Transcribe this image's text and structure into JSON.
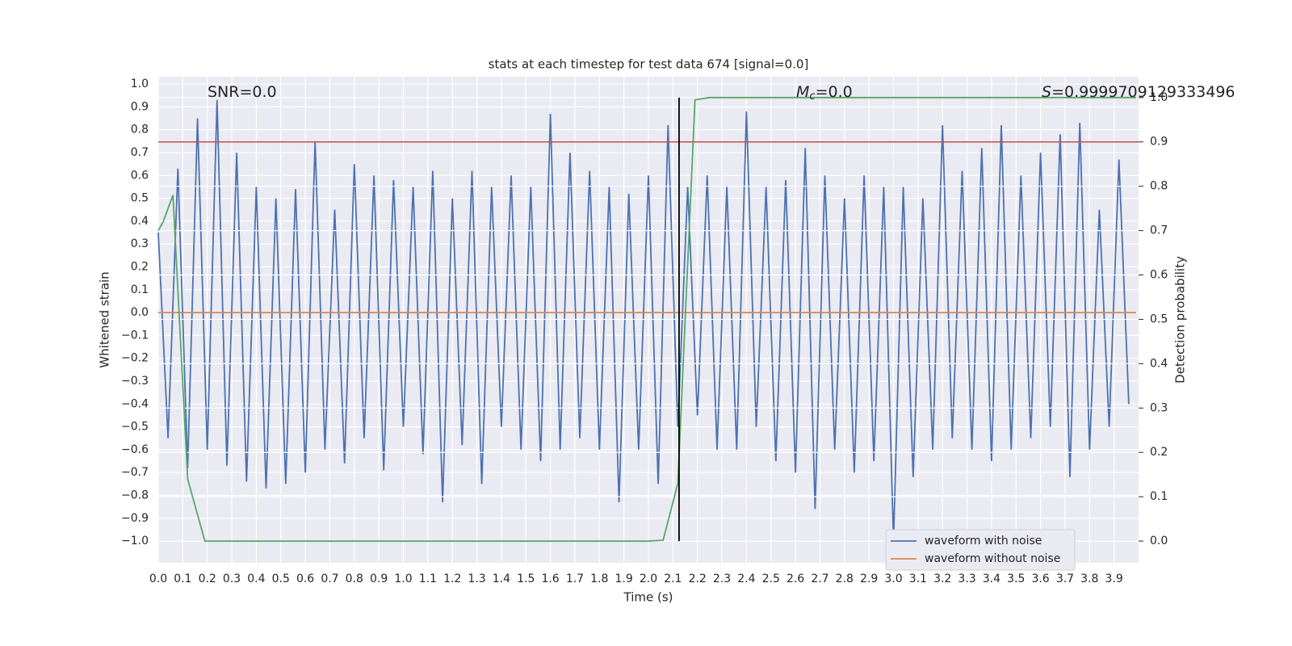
{
  "chart_data": {
    "type": "line",
    "title": "stats at each timestep for test data 674 [signal=0.0]",
    "xlabel": "Time (s)",
    "ylabel": "Whitened strain",
    "y2label": "Detection probability",
    "annotations": [
      [
        "SNR=0.0"
      ],
      [
        "M",
        "c",
        "=0.0"
      ],
      [
        "S",
        "=0.9999709129333496"
      ]
    ],
    "xlim": [
      0,
      4.0
    ],
    "ylim": [
      -1.095,
      1.032
    ],
    "y2lim": [
      -0.049,
      1.047
    ],
    "xticks": [
      {
        "value": 0,
        "label": "0.0"
      },
      0.1,
      0.2,
      0.3,
      0.4,
      0.5,
      0.6,
      0.7,
      0.8,
      0.9,
      {
        "value": 1,
        "label": "1.0"
      },
      1.1,
      1.2,
      1.3,
      1.4,
      1.5,
      1.6,
      1.7,
      1.8,
      1.9,
      {
        "value": 2,
        "label": "2.0"
      },
      2.1,
      2.2,
      2.3,
      2.4,
      2.5,
      2.6,
      2.7,
      2.8,
      2.9,
      {
        "value": 3,
        "label": "3.0"
      },
      3.1,
      3.2,
      3.3,
      3.4,
      3.5,
      3.6,
      3.7,
      3.8,
      3.9
    ],
    "yticks": [
      {
        "value": -1,
        "label": "−1.0"
      },
      {
        "value": -0.9,
        "label": "−0.9"
      },
      {
        "value": -0.8,
        "label": "−0.8"
      },
      {
        "value": -0.7,
        "label": "−0.7"
      },
      {
        "value": -0.6,
        "label": "−0.6"
      },
      {
        "value": -0.5,
        "label": "−0.5"
      },
      {
        "value": -0.4,
        "label": "−0.4"
      },
      {
        "value": -0.3,
        "label": "−0.3"
      },
      {
        "value": -0.2,
        "label": "−0.2"
      },
      {
        "value": -0.1,
        "label": "−0.1"
      },
      {
        "value": 0,
        "label": "0.0"
      },
      0.1,
      0.2,
      0.3,
      0.4,
      0.5,
      0.6,
      0.7,
      0.8,
      0.9,
      {
        "value": 1,
        "label": "1.0"
      }
    ],
    "y2ticks": [
      {
        "value": 0,
        "label": "0.0"
      },
      0.1,
      0.2,
      0.3,
      0.4,
      0.5,
      0.6,
      0.7,
      0.8,
      0.9,
      {
        "value": 1,
        "label": "1.0"
      }
    ],
    "grid": true,
    "legend": "lower right",
    "series": [
      {
        "name": "waveform with noise",
        "color": "#4c72b0",
        "x": [
          0,
          0.04,
          0.08,
          0.12,
          0.16,
          0.2,
          0.24,
          0.28,
          0.32,
          0.36,
          0.4,
          0.44,
          0.48,
          0.52,
          0.56,
          0.6,
          0.64,
          0.68,
          0.72,
          0.76,
          0.8,
          0.84,
          0.88,
          0.92,
          0.96,
          1,
          1.04,
          1.08,
          1.12,
          1.16,
          1.2,
          1.24,
          1.28,
          1.32,
          1.36,
          1.4,
          1.44,
          1.48,
          1.52,
          1.56,
          1.6,
          1.64,
          1.68,
          1.72,
          1.76,
          1.8,
          1.84,
          1.88,
          1.92,
          1.96,
          2,
          2.04,
          2.08,
          2.12,
          2.16,
          2.2,
          2.24,
          2.28,
          2.32,
          2.36,
          2.4,
          2.44,
          2.48,
          2.52,
          2.56,
          2.6,
          2.64,
          2.68,
          2.72,
          2.76,
          2.8,
          2.84,
          2.88,
          2.92,
          2.96,
          3,
          3.04,
          3.08,
          3.12,
          3.16,
          3.2,
          3.24,
          3.28,
          3.32,
          3.36,
          3.4,
          3.44,
          3.48,
          3.52,
          3.56,
          3.6,
          3.64,
          3.68,
          3.72,
          3.76,
          3.8,
          3.84,
          3.88,
          3.92,
          3.96
        ],
        "values": [
          0.35,
          -0.55,
          0.63,
          -0.68,
          0.85,
          -0.6,
          0.93,
          -0.67,
          0.7,
          -0.74,
          0.55,
          -0.77,
          0.5,
          -0.75,
          0.54,
          -0.7,
          0.75,
          -0.6,
          0.45,
          -0.66,
          0.65,
          -0.55,
          0.6,
          -0.69,
          0.58,
          -0.5,
          0.55,
          -0.62,
          0.62,
          -0.83,
          0.5,
          -0.58,
          0.62,
          -0.75,
          0.55,
          -0.5,
          0.6,
          -0.6,
          0.55,
          -0.65,
          0.87,
          -0.6,
          0.7,
          -0.55,
          0.62,
          -0.6,
          0.55,
          -0.83,
          0.52,
          -0.6,
          0.6,
          -0.75,
          0.82,
          -0.5,
          0.55,
          -0.45,
          0.6,
          -0.6,
          0.55,
          -0.6,
          0.88,
          -0.5,
          0.55,
          -0.65,
          0.58,
          -0.7,
          0.72,
          -0.86,
          0.6,
          -0.6,
          0.5,
          -0.7,
          0.6,
          -0.65,
          0.55,
          -1.0,
          0.55,
          -0.72,
          0.5,
          -0.6,
          0.82,
          -0.55,
          0.62,
          -0.6,
          0.72,
          -0.65,
          0.82,
          -0.6,
          0.6,
          -0.55,
          0.7,
          -0.5,
          0.78,
          -0.72,
          0.83,
          -0.6,
          0.45,
          -0.5,
          0.67,
          -0.4
        ]
      },
      {
        "name": "waveform without noise",
        "color": "#dd8452",
        "x": [
          0,
          3.99
        ],
        "values": [
          0,
          0
        ]
      },
      {
        "color": "#55a868",
        "axis": "y2",
        "x": [
          0,
          0.02,
          0.06,
          0.12,
          0.19,
          2.0,
          2.06,
          2.12,
          2.19,
          2.25,
          3.99
        ],
        "values": [
          0.7,
          0.72,
          0.78,
          0.14,
          0.0,
          0.0,
          0.002,
          0.13,
          0.995,
          1.0,
          1.0
        ]
      }
    ],
    "hlines": [
      {
        "value": 0.9,
        "axis": "y2",
        "color": "#c44e52"
      }
    ],
    "vlines": [
      {
        "value": 2.125,
        "color": "#000000",
        "y2span": [
          0,
          1
        ]
      }
    ]
  }
}
